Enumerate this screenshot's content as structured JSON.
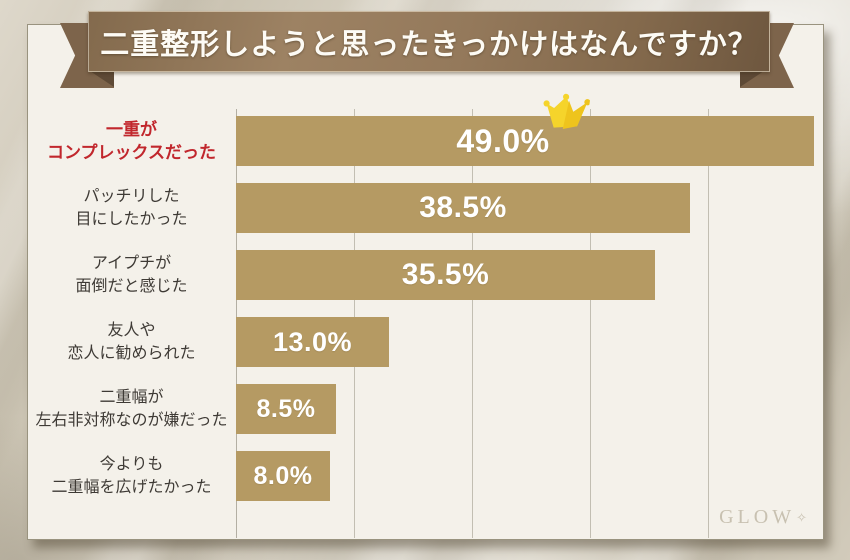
{
  "title_banner": {
    "text": "二重整形しようと思ったきっかけはなんですか？"
  },
  "watermark": {
    "text": "GLOW",
    "mark": "✧"
  },
  "colors": {
    "bar": "#b59a63",
    "highlight_label": "#c1272d",
    "label_text": "#3e3a35",
    "banner_brown": "#8a7052",
    "ribbon_tail": "#7d644b",
    "fold_shadow": "#5e4a36",
    "panel_bg": "#f4f1ea",
    "crown_gold": "#f5d42b",
    "percent_text": "#ffffff"
  },
  "chart_data": {
    "type": "bar",
    "orientation": "horizontal",
    "title": "二重整形しようと思ったきっかけはなんですか？",
    "unit": "%",
    "xlim": [
      0,
      50
    ],
    "grid": true,
    "gridline_ticks_percent": [
      10,
      20,
      30,
      40
    ],
    "legend": "none",
    "items": [
      {
        "label_lines": [
          "一重が",
          "コンプレックスだった"
        ],
        "value": 49.0,
        "value_label": "49.0%",
        "highlight": true,
        "crown": true
      },
      {
        "label_lines": [
          "パッチリした",
          "目にしたかった"
        ],
        "value": 38.5,
        "value_label": "38.5%",
        "highlight": false,
        "crown": false
      },
      {
        "label_lines": [
          "アイプチが",
          "面倒だと感じた"
        ],
        "value": 35.5,
        "value_label": "35.5%",
        "highlight": false,
        "crown": false
      },
      {
        "label_lines": [
          "友人や",
          "恋人に勧められた"
        ],
        "value": 13.0,
        "value_label": "13.0%",
        "highlight": false,
        "crown": false
      },
      {
        "label_lines": [
          "二重幅が",
          "左右非対称なのが嫌だった"
        ],
        "value": 8.5,
        "value_label": "8.5%",
        "highlight": false,
        "crown": false
      },
      {
        "label_lines": [
          "今よりも",
          "二重幅を広げたかった"
        ],
        "value": 8.0,
        "value_label": "8.0%",
        "highlight": false,
        "crown": false
      }
    ]
  }
}
